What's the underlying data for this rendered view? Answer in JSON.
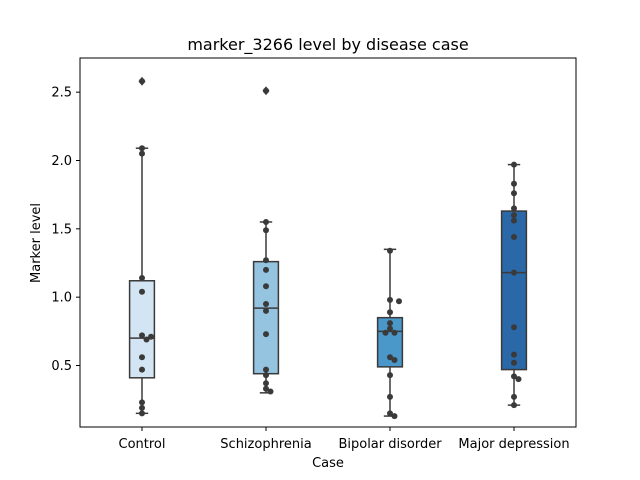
{
  "chart_data": {
    "type": "box",
    "title": "marker_3266 level by disease case",
    "xlabel": "Case",
    "ylabel": "Marker level",
    "ylim": [
      0.05,
      2.75
    ],
    "yticks": [
      0.5,
      1.0,
      1.5,
      2.0,
      2.5
    ],
    "ytick_labels": [
      "0.5",
      "1.0",
      "1.5",
      "2.0",
      "2.5"
    ],
    "grid": false,
    "categories": [
      "Control",
      "Schizophrenia",
      "Bipolar disorder",
      "Major depression"
    ],
    "colors": [
      "#d3e4f3",
      "#94c4df",
      "#4a98c9",
      "#2a68a8"
    ],
    "box_stats": [
      {
        "q1": 0.41,
        "median": 0.7,
        "q3": 1.12,
        "whisker_low": 0.15,
        "whisker_high": 2.09,
        "outliers": [
          2.58
        ]
      },
      {
        "q1": 0.44,
        "median": 0.92,
        "q3": 1.26,
        "whisker_low": 0.3,
        "whisker_high": 1.55,
        "outliers": [
          2.51
        ]
      },
      {
        "q1": 0.49,
        "median": 0.75,
        "q3": 0.85,
        "whisker_low": 0.13,
        "whisker_high": 1.35,
        "outliers": []
      },
      {
        "q1": 0.47,
        "median": 1.18,
        "q3": 1.63,
        "whisker_low": 0.21,
        "whisker_high": 1.97,
        "outliers": []
      }
    ],
    "points": [
      [
        2.58,
        2.09,
        2.05,
        1.14,
        1.04,
        0.72,
        0.71,
        0.69,
        0.56,
        0.47,
        0.23,
        0.19,
        0.15
      ],
      [
        2.51,
        1.55,
        1.49,
        1.27,
        1.2,
        1.08,
        0.95,
        0.9,
        0.73,
        0.47,
        0.43,
        0.37,
        0.33,
        0.31
      ],
      [
        1.34,
        0.98,
        0.97,
        0.89,
        0.81,
        0.77,
        0.74,
        0.74,
        0.56,
        0.54,
        0.43,
        0.27,
        0.15,
        0.13
      ],
      [
        1.97,
        1.83,
        1.76,
        1.65,
        1.6,
        1.56,
        1.44,
        1.18,
        0.78,
        0.58,
        0.52,
        0.42,
        0.4,
        0.27,
        0.21
      ]
    ]
  }
}
